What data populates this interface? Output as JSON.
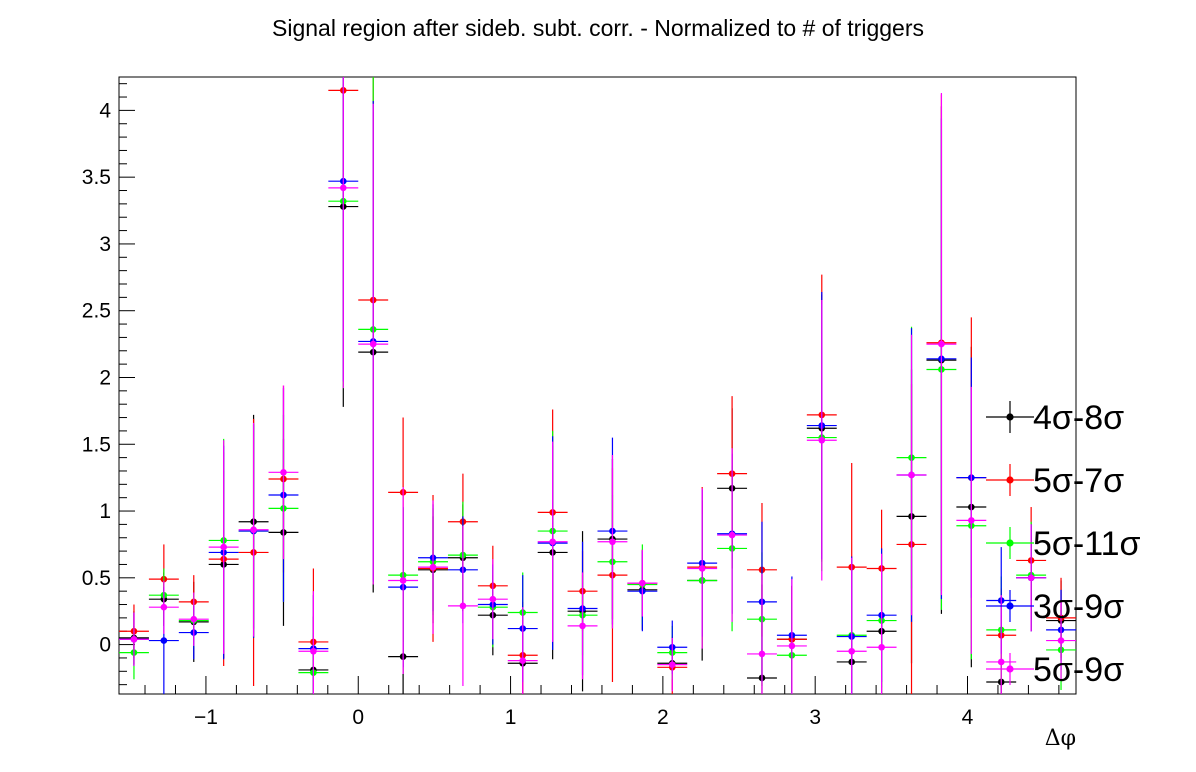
{
  "chart_data": {
    "type": "scatter",
    "title": "Signal region after sideb. subt. corr. - Normalized to # of triggers",
    "xlabel": "Δφ",
    "ylabel": "",
    "xlim": [
      -1.5708,
      4.7124
    ],
    "ylim": [
      -0.37,
      4.25
    ],
    "x_ticks": [
      -1,
      0,
      1,
      2,
      3,
      4
    ],
    "x_tick_labels": [
      "−1",
      "0",
      "1",
      "2",
      "3",
      "4"
    ],
    "y_ticks": [
      0,
      0.5,
      1,
      1.5,
      2,
      2.5,
      3,
      3.5,
      4
    ],
    "y_tick_labels": [
      "0",
      "0.5",
      "1",
      "1.5",
      "2",
      "2.5",
      "3",
      "3.5",
      "4"
    ],
    "grid": false,
    "legend_position": "right",
    "bin_half_width": 0.0982,
    "x": [
      -1.4726,
      -1.2763,
      -1.0799,
      -0.8836,
      -0.6872,
      -0.4909,
      -0.2945,
      -0.0982,
      0.0982,
      0.2945,
      0.4909,
      0.6872,
      0.8836,
      1.0799,
      1.2763,
      1.4726,
      1.669,
      1.8653,
      2.0617,
      2.258,
      2.4544,
      2.6507,
      2.8471,
      3.0434,
      3.2398,
      3.4361,
      3.6325,
      3.8288,
      4.0252,
      4.2215,
      4.4179,
      4.6142
    ],
    "series": [
      {
        "name": "4σ-8σ",
        "color": "#000000",
        "values": [
          0.05,
          0.34,
          0.17,
          0.6,
          0.92,
          0.84,
          -0.19,
          3.28,
          2.19,
          -0.09,
          0.56,
          0.65,
          0.22,
          -0.14,
          0.69,
          0.25,
          0.79,
          0.41,
          -0.14,
          0.48,
          1.17,
          -0.25,
          0.04,
          1.62,
          -0.13,
          0.1,
          0.96,
          2.13,
          1.03,
          -0.28,
          0.5,
          0.18
        ],
        "errors": [
          0.2,
          0.2,
          0.3,
          0.7,
          0.8,
          0.7,
          0.4,
          1.5,
          1.8,
          0.8,
          0.4,
          0.4,
          0.3,
          0.4,
          0.8,
          0.6,
          0.6,
          0.3,
          0.2,
          0.6,
          0.6,
          0.7,
          0.4,
          1.0,
          0.7,
          0.5,
          1.1,
          1.9,
          1.2,
          0.5,
          0.4,
          0.3
        ]
      },
      {
        "name": "5σ-7σ",
        "color": "#ff0000",
        "values": [
          0.1,
          0.49,
          0.32,
          0.64,
          0.69,
          1.24,
          0.02,
          4.15,
          2.58,
          1.14,
          0.57,
          0.92,
          0.44,
          -0.08,
          0.99,
          0.4,
          0.52,
          0.46,
          -0.17,
          0.58,
          1.28,
          0.56,
          0.04,
          1.72,
          0.58,
          0.57,
          0.75,
          2.26,
          1.25,
          0.07,
          0.63,
          0.2
        ],
        "errors": [
          0.2,
          0.26,
          0.2,
          0.8,
          1.0,
          0.7,
          0.55,
          1.8,
          2.0,
          0.56,
          0.55,
          0.36,
          0.3,
          0.4,
          0.77,
          0.3,
          0.8,
          0.25,
          0.2,
          0.6,
          0.58,
          0.5,
          0.4,
          1.05,
          0.78,
          0.44,
          1.2,
          1.86,
          1.2,
          0.35,
          0.4,
          0.3
        ]
      },
      {
        "name": "5σ-11σ",
        "color": "#00ff00",
        "values": [
          -0.06,
          0.37,
          0.18,
          0.78,
          0.85,
          1.02,
          -0.21,
          3.32,
          2.36,
          0.52,
          0.62,
          0.67,
          0.28,
          0.24,
          0.85,
          0.22,
          0.62,
          0.45,
          -0.06,
          0.48,
          0.72,
          0.19,
          -0.08,
          1.55,
          0.07,
          0.18,
          1.4,
          2.06,
          0.89,
          0.11,
          0.52,
          -0.04
        ],
        "errors": [
          0.2,
          0.2,
          0.2,
          0.76,
          0.8,
          0.7,
          0.3,
          1.4,
          1.9,
          0.5,
          0.4,
          0.4,
          0.3,
          0.3,
          0.75,
          0.3,
          0.5,
          0.3,
          0.2,
          0.5,
          0.62,
          0.5,
          0.4,
          1.0,
          0.55,
          0.5,
          0.98,
          1.8,
          1.0,
          0.4,
          0.4,
          0.3
        ]
      },
      {
        "name": "3σ-9σ",
        "color": "#0000ff",
        "values": [
          0.04,
          0.03,
          0.09,
          0.69,
          0.85,
          1.12,
          -0.03,
          3.47,
          2.27,
          0.43,
          0.65,
          0.56,
          0.3,
          0.12,
          0.76,
          0.27,
          0.85,
          0.4,
          -0.02,
          0.61,
          0.83,
          0.32,
          0.07,
          1.64,
          0.06,
          0.22,
          1.27,
          2.14,
          1.25,
          0.33,
          0.5,
          0.11
        ],
        "errors": [
          0.2,
          0.4,
          0.2,
          0.8,
          0.8,
          0.8,
          0.4,
          1.5,
          1.8,
          0.6,
          0.4,
          0.4,
          0.3,
          0.4,
          0.8,
          0.5,
          0.7,
          0.3,
          0.2,
          0.55,
          0.6,
          0.6,
          0.44,
          1.0,
          0.6,
          0.5,
          1.1,
          1.8,
          0.9,
          0.4,
          0.4,
          0.3
        ]
      },
      {
        "name": "5σ-9σ",
        "color": "#ff00ff",
        "values": [
          0.04,
          0.28,
          0.19,
          0.73,
          0.86,
          1.29,
          -0.05,
          3.42,
          2.25,
          0.48,
          0.58,
          0.29,
          0.34,
          -0.12,
          0.77,
          0.14,
          0.77,
          0.46,
          -0.15,
          0.57,
          0.82,
          -0.07,
          -0.01,
          1.53,
          -0.05,
          -0.02,
          1.27,
          2.25,
          0.93,
          -0.13,
          0.5,
          0.03
        ],
        "errors": [
          0.2,
          0.2,
          0.2,
          0.8,
          0.8,
          0.65,
          0.45,
          1.5,
          1.8,
          0.7,
          0.5,
          0.6,
          0.3,
          0.4,
          0.75,
          0.4,
          0.65,
          0.25,
          0.2,
          0.6,
          0.65,
          0.6,
          0.5,
          1.05,
          0.7,
          0.7,
          1.05,
          1.88,
          1.0,
          0.5,
          0.4,
          0.3
        ]
      }
    ]
  }
}
